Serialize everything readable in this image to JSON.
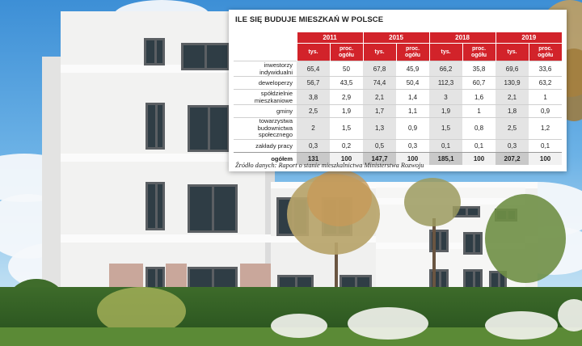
{
  "title": "ILE SIĘ BUDUJE MIESZKAŃ W POLSCE",
  "years": [
    "2011",
    "2015",
    "2018",
    "2019"
  ],
  "subheaders": {
    "thousands": "tys.",
    "percent_line1": "proc.",
    "percent_line2": "ogółu"
  },
  "rows": [
    {
      "label": [
        "inwestorzy indywidualni"
      ],
      "values": [
        "65,4",
        "50",
        "67,8",
        "45,9",
        "66,2",
        "35,8",
        "69,6",
        "33,6"
      ]
    },
    {
      "label": [
        "deweloperzy"
      ],
      "values": [
        "56,7",
        "43,5",
        "74,4",
        "50,4",
        "112,3",
        "60,7",
        "130,9",
        "63,2"
      ]
    },
    {
      "label": [
        "spółdzielnie mieszkaniowe"
      ],
      "values": [
        "3,8",
        "2,9",
        "2,1",
        "1,4",
        "3",
        "1,6",
        "2,1",
        "1"
      ]
    },
    {
      "label": [
        "gminy"
      ],
      "values": [
        "2,5",
        "1,9",
        "1,7",
        "1,1",
        "1,9",
        "1",
        "1,8",
        "0,9"
      ]
    },
    {
      "label": [
        "towarzystwa budownictwa",
        "społecznego"
      ],
      "values": [
        "2",
        "1,5",
        "1,3",
        "0,9",
        "1,5",
        "0,8",
        "2,5",
        "1,2"
      ]
    },
    {
      "label": [
        "zakłady pracy"
      ],
      "values": [
        "0,3",
        "0,2",
        "0,5",
        "0,3",
        "0,1",
        "0,1",
        "0,3",
        "0,1"
      ]
    },
    {
      "label": [
        "ogółem"
      ],
      "values": [
        "131",
        "100",
        "147,7",
        "100",
        "185,1",
        "100",
        "207,2",
        "100"
      ]
    }
  ],
  "source": "Źródło danych: Raport o stanie mieszkalnictwa Ministerstwa Rozwoju",
  "colors": {
    "header_red": "#d2232a",
    "zebra_gray": "#e4e4e4"
  }
}
